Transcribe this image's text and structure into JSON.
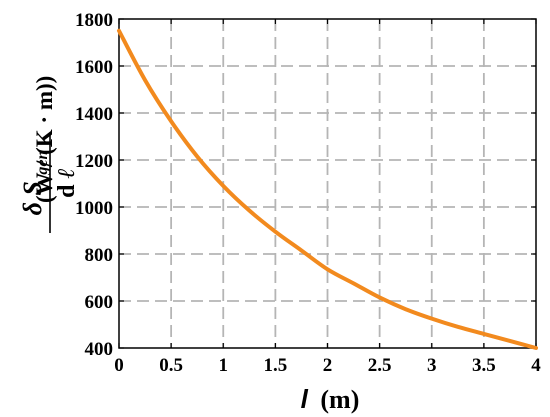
{
  "chart_data": {
    "type": "line",
    "x_ticks": [
      "0",
      "0.5",
      "1",
      "1.5",
      "2",
      "2.5",
      "3",
      "3.5",
      "4"
    ],
    "y_ticks": [
      "400",
      "600",
      "800",
      "1000",
      "1200",
      "1400",
      "1600",
      "1800"
    ],
    "xlim": [
      0,
      4
    ],
    "ylim": [
      400,
      1800
    ],
    "grid": true,
    "line_color": "#f28a1e",
    "series": [
      {
        "x": [
          0,
          0.25,
          0.5,
          0.75,
          1,
          1.25,
          1.5,
          1.75,
          2,
          2.25,
          2.5,
          2.75,
          3,
          3.25,
          3.5,
          3.75,
          4
        ],
        "values": [
          1750,
          1540,
          1365,
          1215,
          1090,
          985,
          895,
          815,
          735,
          675,
          615,
          565,
          525,
          490,
          460,
          430,
          400
        ]
      }
    ],
    "xlabel": {
      "var": "l",
      "unit": "(m)"
    },
    "ylabel": {
      "delta": "δ",
      "S": "S",
      "sub": "gen",
      "denom_d": "d",
      "denom_l": "ℓ",
      "unit": "(W / (K · m))"
    }
  }
}
